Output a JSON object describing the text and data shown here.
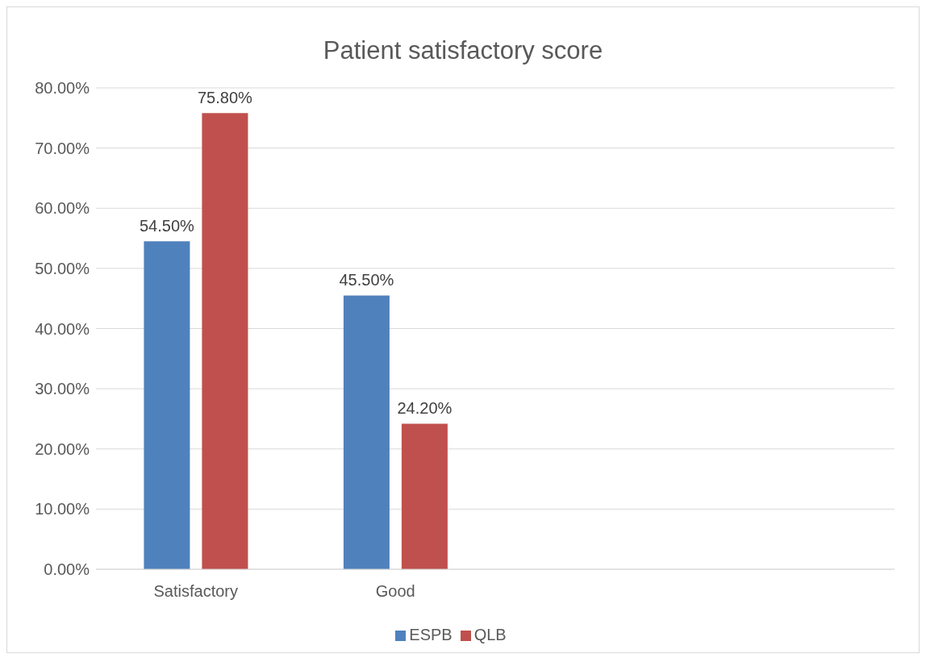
{
  "chart_data": {
    "type": "bar",
    "title": "Patient satisfactory score",
    "categories": [
      "Satisfactory",
      "Good",
      null,
      null
    ],
    "series": [
      {
        "name": "ESPB",
        "color": "#4f81bd",
        "values": [
          54.5,
          45.5,
          null,
          null
        ],
        "value_labels": [
          "54.50%",
          "45.50%",
          null,
          null
        ]
      },
      {
        "name": "QLB",
        "color": "#c0504d",
        "values": [
          75.8,
          24.2,
          null,
          null
        ],
        "value_labels": [
          "75.80%",
          "24.20%",
          null,
          null
        ]
      }
    ],
    "ylim": [
      0,
      80
    ],
    "yticks": [
      {
        "value": 0,
        "label": "0.00%"
      },
      {
        "value": 10,
        "label": "10.00%"
      },
      {
        "value": 20,
        "label": "20.00%"
      },
      {
        "value": 30,
        "label": "30.00%"
      },
      {
        "value": 40,
        "label": "40.00%"
      },
      {
        "value": 50,
        "label": "50.00%"
      },
      {
        "value": 60,
        "label": "60.00%"
      },
      {
        "value": 70,
        "label": "70.00%"
      },
      {
        "value": 80,
        "label": "80.00%"
      }
    ],
    "grid": "y",
    "legend": "bottom"
  }
}
